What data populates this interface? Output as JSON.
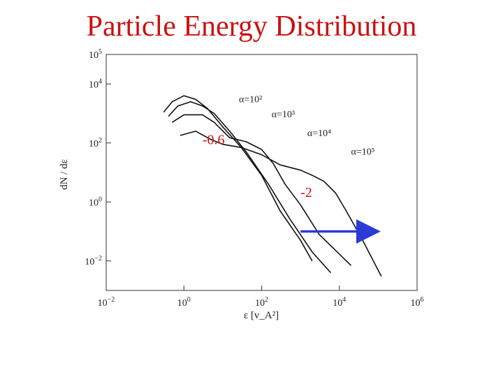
{
  "title": "Particle Energy Distribution",
  "chart_data": {
    "type": "line",
    "x_scale": "log",
    "y_scale": "log",
    "xlim": [
      0.01,
      1000000
    ],
    "ylim": [
      0.001,
      100000
    ],
    "xlabel": "ε [v_A²]",
    "ylabel": "dN / dε",
    "x_ticks": [
      0.01,
      1,
      100,
      10000,
      1000000
    ],
    "y_ticks": [
      0.01,
      1,
      100,
      10000,
      100000
    ],
    "grid": false,
    "series": [
      {
        "name": "α=10²",
        "points": [
          [
            0.3,
            1100
          ],
          [
            0.5,
            2500
          ],
          [
            1.0,
            4000
          ],
          [
            2.0,
            3000
          ],
          [
            4.0,
            1500
          ],
          [
            10,
            350
          ],
          [
            30,
            70
          ],
          [
            100,
            8
          ],
          [
            300,
            0.5
          ],
          [
            1000,
            0.05
          ],
          [
            2000,
            0.01
          ]
        ]
      },
      {
        "name": "α=10³",
        "points": [
          [
            0.4,
            800
          ],
          [
            0.7,
            1800
          ],
          [
            1.5,
            2500
          ],
          [
            3.0,
            1800
          ],
          [
            6.0,
            1000
          ],
          [
            15,
            250
          ],
          [
            40,
            50
          ],
          [
            150,
            4
          ],
          [
            500,
            0.3
          ],
          [
            2000,
            0.02
          ],
          [
            6000,
            0.004
          ]
        ]
      },
      {
        "name": "α=10⁴",
        "points": [
          [
            0.5,
            500
          ],
          [
            1.0,
            900
          ],
          [
            3.0,
            900
          ],
          [
            6.0,
            500
          ],
          [
            15,
            150
          ],
          [
            40,
            110
          ],
          [
            100,
            60
          ],
          [
            200,
            20
          ],
          [
            400,
            4
          ],
          [
            1000,
            0.8
          ],
          [
            3000,
            0.08
          ],
          [
            20000,
            0.007
          ]
        ]
      },
      {
        "name": "α=10⁵",
        "points": [
          [
            0.8,
            180
          ],
          [
            2.0,
            250
          ],
          [
            5.0,
            130
          ],
          [
            10,
            90
          ],
          [
            30,
            70
          ],
          [
            100,
            40
          ],
          [
            300,
            18
          ],
          [
            1000,
            12
          ],
          [
            2000,
            8
          ],
          [
            4000,
            5
          ],
          [
            8000,
            2
          ],
          [
            15000,
            0.5
          ],
          [
            40000,
            0.05
          ],
          [
            120000,
            0.003
          ]
        ]
      }
    ],
    "annotations": [
      {
        "text": "-0.6",
        "x": 3,
        "y": 90
      },
      {
        "text": "-2",
        "x": 1000,
        "y": 1.5
      }
    ],
    "arrow": {
      "from": [
        1000,
        0.1
      ],
      "to": [
        100000,
        0.1
      ],
      "color": "#2a3bd6"
    }
  }
}
